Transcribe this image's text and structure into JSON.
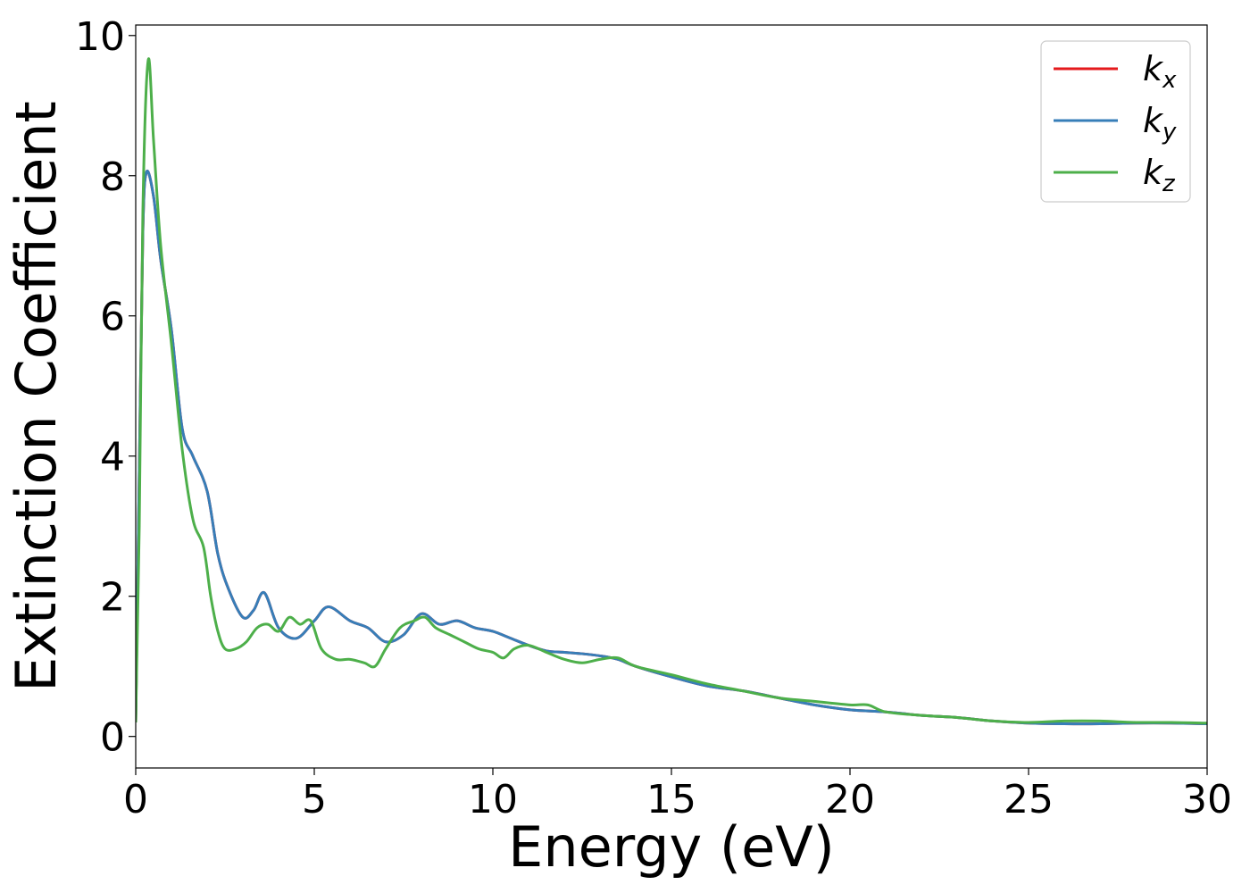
{
  "chart_data": {
    "type": "line",
    "xlabel": "Energy (eV)",
    "ylabel": "Extinction Coefficient",
    "xlim": [
      0,
      30
    ],
    "ylim": [
      -0.45,
      10.15
    ],
    "xticks": [
      0,
      5,
      10,
      15,
      20,
      25,
      30
    ],
    "yticks": [
      0,
      2,
      4,
      6,
      8,
      10
    ],
    "grid": false,
    "legend_position": "top-right",
    "legend": [
      {
        "base": "k",
        "sub": "x",
        "color": "#e41a1c"
      },
      {
        "base": "k",
        "sub": "y",
        "color": "#377eb8"
      },
      {
        "base": "k",
        "sub": "z",
        "color": "#4daf4a"
      }
    ],
    "series": [
      {
        "name": "k_x",
        "color": "#e41a1c",
        "x": [
          0,
          0.1,
          0.2,
          0.3,
          0.5,
          0.7,
          1.0,
          1.3,
          1.6,
          2.0,
          2.3,
          2.6,
          3.0,
          3.3,
          3.6,
          4.0,
          4.5,
          5.0,
          5.4,
          6.0,
          6.5,
          7.0,
          7.5,
          8.0,
          8.5,
          9.0,
          9.5,
          10.0,
          10.5,
          11.0,
          11.5,
          12.0,
          12.5,
          13.0,
          13.5,
          14.0,
          15.0,
          16.0,
          17.0,
          18.0,
          19.0,
          20.0,
          21.0,
          22.0,
          23.0,
          24.0,
          25.0,
          26.0,
          27.0,
          28.0,
          29.0,
          30.0
        ],
        "y": [
          0.2,
          3.8,
          7.2,
          8.05,
          7.7,
          6.8,
          5.8,
          4.4,
          4.0,
          3.5,
          2.6,
          2.1,
          1.7,
          1.8,
          2.05,
          1.55,
          1.4,
          1.65,
          1.85,
          1.65,
          1.55,
          1.35,
          1.45,
          1.75,
          1.6,
          1.65,
          1.55,
          1.5,
          1.4,
          1.3,
          1.22,
          1.2,
          1.18,
          1.15,
          1.1,
          1.0,
          0.85,
          0.72,
          0.65,
          0.55,
          0.45,
          0.38,
          0.35,
          0.3,
          0.27,
          0.22,
          0.19,
          0.18,
          0.18,
          0.19,
          0.19,
          0.18
        ]
      },
      {
        "name": "k_y",
        "color": "#377eb8",
        "x": [
          0,
          0.1,
          0.2,
          0.3,
          0.5,
          0.7,
          1.0,
          1.3,
          1.6,
          2.0,
          2.3,
          2.6,
          3.0,
          3.3,
          3.6,
          4.0,
          4.5,
          5.0,
          5.4,
          6.0,
          6.5,
          7.0,
          7.5,
          8.0,
          8.5,
          9.0,
          9.5,
          10.0,
          10.5,
          11.0,
          11.5,
          12.0,
          12.5,
          13.0,
          13.5,
          14.0,
          15.0,
          16.0,
          17.0,
          18.0,
          19.0,
          20.0,
          21.0,
          22.0,
          23.0,
          24.0,
          25.0,
          26.0,
          27.0,
          28.0,
          29.0,
          30.0
        ],
        "y": [
          0.2,
          3.8,
          7.2,
          8.05,
          7.7,
          6.8,
          5.8,
          4.4,
          4.0,
          3.5,
          2.6,
          2.1,
          1.7,
          1.8,
          2.05,
          1.55,
          1.4,
          1.65,
          1.85,
          1.65,
          1.55,
          1.35,
          1.45,
          1.75,
          1.6,
          1.65,
          1.55,
          1.5,
          1.4,
          1.3,
          1.22,
          1.2,
          1.18,
          1.15,
          1.1,
          1.0,
          0.85,
          0.72,
          0.65,
          0.55,
          0.45,
          0.38,
          0.35,
          0.3,
          0.27,
          0.22,
          0.19,
          0.18,
          0.18,
          0.19,
          0.19,
          0.18
        ]
      },
      {
        "name": "k_z",
        "color": "#4daf4a",
        "x": [
          0,
          0.1,
          0.2,
          0.35,
          0.5,
          0.7,
          1.0,
          1.3,
          1.6,
          1.9,
          2.1,
          2.3,
          2.5,
          2.8,
          3.1,
          3.4,
          3.7,
          4.0,
          4.3,
          4.6,
          4.9,
          5.2,
          5.6,
          6.0,
          6.4,
          6.7,
          7.0,
          7.4,
          7.8,
          8.1,
          8.4,
          8.8,
          9.2,
          9.6,
          10.0,
          10.3,
          10.6,
          11.0,
          11.5,
          12.0,
          12.5,
          13.0,
          13.5,
          14.0,
          15.0,
          16.0,
          17.0,
          18.0,
          19.0,
          20.0,
          20.5,
          21.0,
          22.0,
          23.0,
          24.0,
          25.0,
          26.0,
          27.0,
          28.0,
          29.0,
          30.0
        ],
        "y": [
          0.2,
          3.0,
          7.5,
          9.65,
          8.5,
          7.0,
          5.6,
          4.1,
          3.1,
          2.7,
          2.0,
          1.5,
          1.25,
          1.25,
          1.35,
          1.55,
          1.6,
          1.5,
          1.7,
          1.6,
          1.65,
          1.25,
          1.1,
          1.1,
          1.05,
          1.0,
          1.25,
          1.55,
          1.65,
          1.7,
          1.55,
          1.45,
          1.35,
          1.25,
          1.2,
          1.12,
          1.25,
          1.3,
          1.2,
          1.1,
          1.05,
          1.1,
          1.12,
          1.0,
          0.88,
          0.75,
          0.65,
          0.55,
          0.5,
          0.45,
          0.45,
          0.35,
          0.3,
          0.27,
          0.22,
          0.2,
          0.22,
          0.22,
          0.2,
          0.2,
          0.19
        ]
      }
    ]
  }
}
